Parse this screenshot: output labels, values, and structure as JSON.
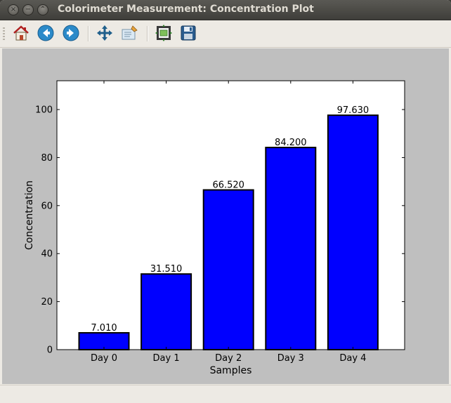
{
  "window": {
    "title": "Colorimeter Measurement: Concentration Plot",
    "controls": [
      "close-icon",
      "minimize-icon",
      "maximize-icon"
    ]
  },
  "toolbar": {
    "tools": [
      {
        "name": "home-button",
        "icon": "home-icon"
      },
      {
        "name": "back-button",
        "icon": "arrow-left-icon"
      },
      {
        "name": "forward-button",
        "icon": "arrow-right-icon"
      },
      {
        "name": "pan-button",
        "icon": "move-icon"
      },
      {
        "name": "zoom-button",
        "icon": "zoom-rect-icon"
      },
      {
        "name": "configure-subplots-button",
        "icon": "subplots-icon"
      },
      {
        "name": "save-button",
        "icon": "floppy-disk-icon"
      }
    ]
  },
  "chart_data": {
    "type": "bar",
    "categories": [
      "Day 0",
      "Day 1",
      "Day 2",
      "Day 3",
      "Day 4"
    ],
    "values": [
      7.01,
      31.51,
      66.52,
      84.2,
      97.63
    ],
    "data_labels": [
      "7.010",
      "31.510",
      "66.520",
      "84.200",
      "97.630"
    ],
    "title": "",
    "xlabel": "Samples",
    "ylabel": "Concentration",
    "ylim": [
      0,
      112
    ],
    "yticks": [
      0,
      20,
      40,
      60,
      80,
      100
    ],
    "grid": false,
    "legend": "none",
    "bar_color": "#0000ff",
    "edge_color": "#000000"
  },
  "colors": {
    "canvas_background": "#bfbfbf",
    "plot_background": "#ffffff",
    "titlebar": "#3f3e3a"
  }
}
